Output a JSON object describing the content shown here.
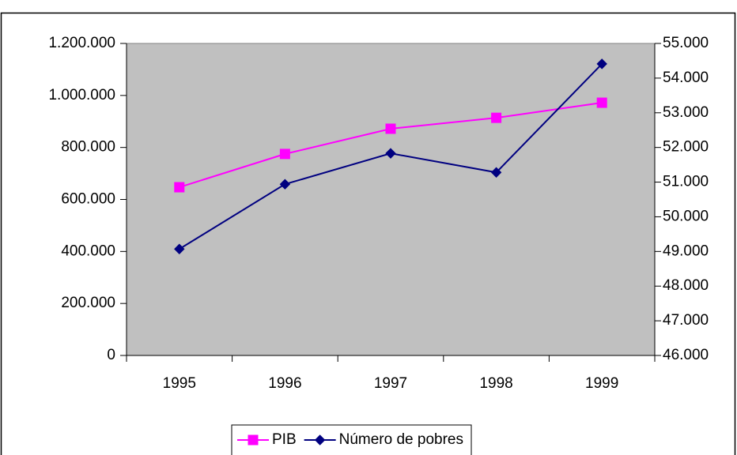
{
  "chart_data": {
    "type": "line",
    "categories": [
      "1995",
      "1996",
      "1997",
      "1998",
      "1999"
    ],
    "series": [
      {
        "name": "PIB",
        "color": "#ff00ff",
        "marker": "square",
        "values": [
          647000,
          775000,
          872000,
          914000,
          972000
        ]
      },
      {
        "name": "Número de pobres",
        "color": "#000080",
        "marker": "diamond",
        "axis": "y2",
        "values": [
          49070,
          50940,
          51830,
          51280,
          54410
        ]
      }
    ],
    "ylim": [
      0,
      1200000
    ],
    "yticks": [
      0,
      {
        "value": 200000,
        "label": "200.000"
      },
      {
        "value": 400000,
        "label": "400.000"
      },
      {
        "value": 600000,
        "label": "600.000"
      },
      {
        "value": 800000,
        "label": "800.000"
      },
      {
        "value": 1000000,
        "label": "1.000.000"
      },
      {
        "value": 1200000,
        "label": "1.200.000"
      }
    ],
    "y2lim": [
      46000,
      55000
    ],
    "y2ticks": [
      {
        "value": 46000,
        "label": "46.000"
      },
      {
        "value": 47000,
        "label": "47.000"
      },
      {
        "value": 48000,
        "label": "48.000"
      },
      {
        "value": 49000,
        "label": "49.000"
      },
      {
        "value": 50000,
        "label": "50.000"
      },
      {
        "value": 51000,
        "label": "51.000"
      },
      {
        "value": 52000,
        "label": "52.000"
      },
      {
        "value": 53000,
        "label": "53.000"
      },
      {
        "value": 54000,
        "label": "54.000"
      },
      {
        "value": 55000,
        "label": "55.000"
      }
    ],
    "plot_background": "#c0c0c0",
    "legend": "bottom"
  }
}
